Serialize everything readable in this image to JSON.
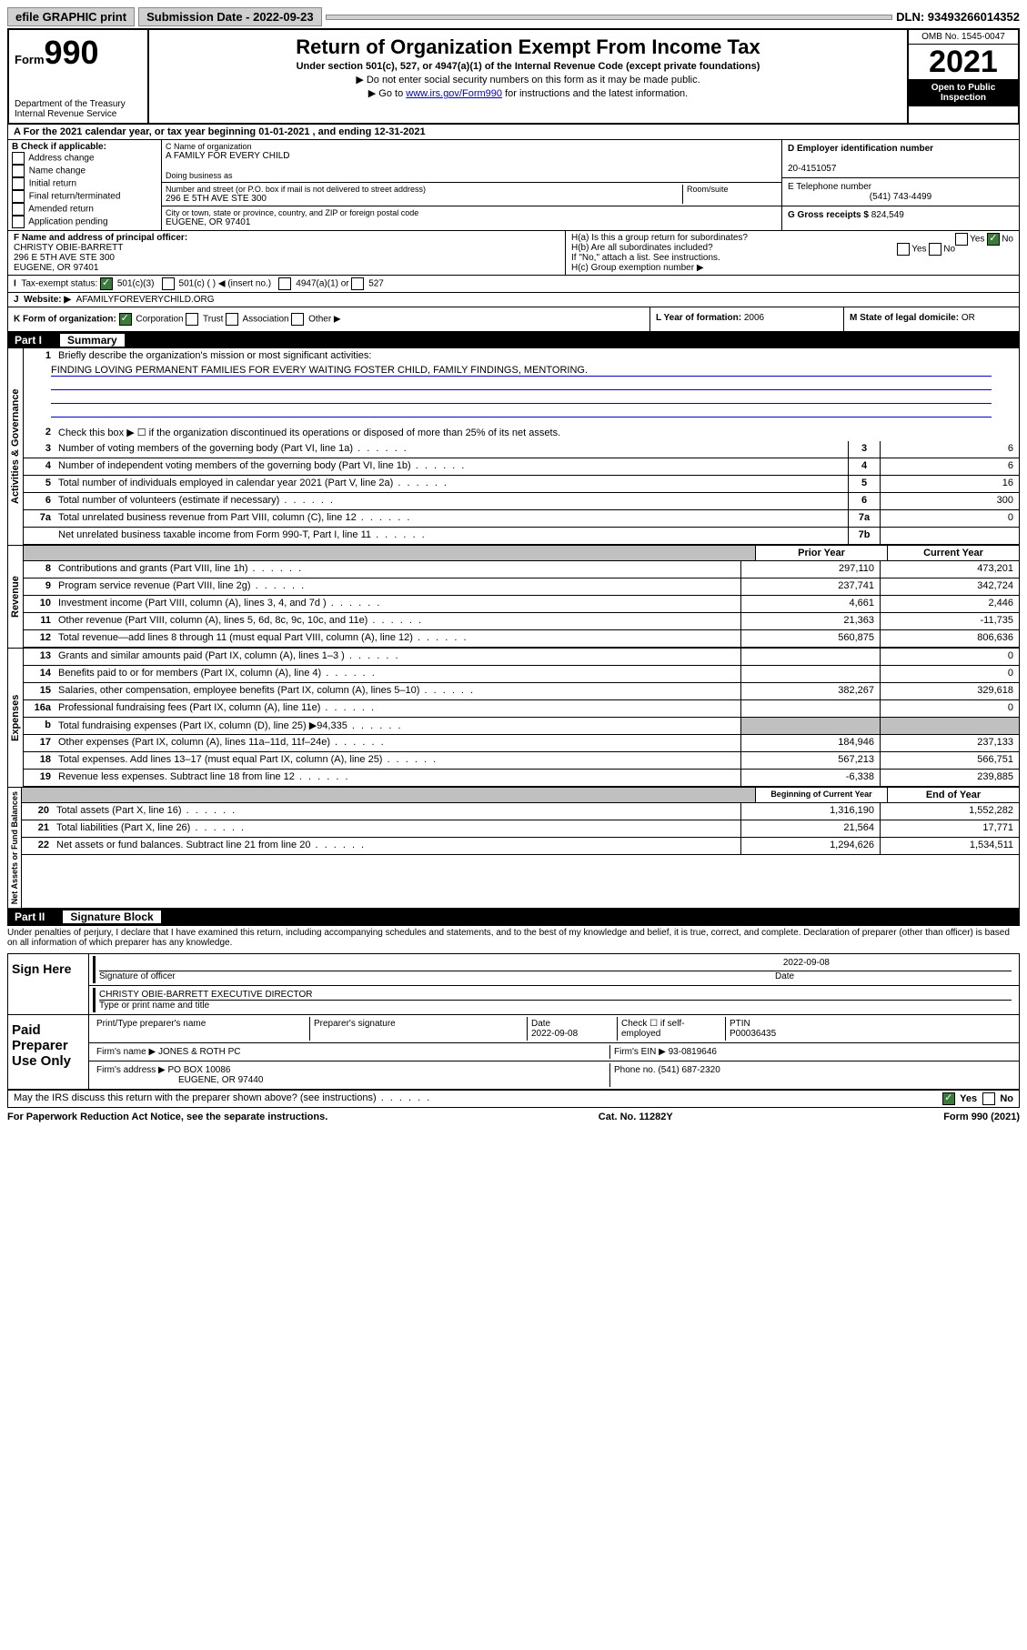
{
  "top": {
    "efile": "efile GRAPHIC print",
    "submission_label": "Submission Date - 2022-09-23",
    "dln": "DLN: 93493266014352"
  },
  "header": {
    "form_word": "Form",
    "form_number": "990",
    "dept": "Department of the Treasury",
    "irs": "Internal Revenue Service",
    "title": "Return of Organization Exempt From Income Tax",
    "sub": "Under section 501(c), 527, or 4947(a)(1) of the Internal Revenue Code (except private foundations)",
    "note1": "▶ Do not enter social security numbers on this form as it may be made public.",
    "note2_pre": "▶ Go to ",
    "note2_link": "www.irs.gov/Form990",
    "note2_post": " for instructions and the latest information.",
    "omb": "OMB No. 1545-0047",
    "year": "2021",
    "inspect": "Open to Public Inspection"
  },
  "a": {
    "tax_year": "For the 2021 calendar year, or tax year beginning 01-01-2021   , and ending 12-31-2021",
    "b_label": "B Check if applicable:",
    "b_opts": [
      "Address change",
      "Name change",
      "Initial return",
      "Final return/terminated",
      "Amended return",
      "Application pending"
    ],
    "c_label": "C Name of organization",
    "c_name": "A FAMILY FOR EVERY CHILD",
    "dba_label": "Doing business as",
    "addr_label": "Number and street (or P.O. box if mail is not delivered to street address)",
    "room_label": "Room/suite",
    "addr": "296 E 5TH AVE STE 300",
    "city_label": "City or town, state or province, country, and ZIP or foreign postal code",
    "city": "EUGENE, OR  97401",
    "d_label": "D Employer identification number",
    "d_val": "20-4151057",
    "e_label": "E Telephone number",
    "e_val": "(541) 743-4499",
    "g_label": "G Gross receipts $",
    "g_val": "824,549",
    "f_label": "F Name and address of principal officer:",
    "f_name": "CHRISTY OBIE-BARRETT",
    "f_addr1": "296 E 5TH AVE STE 300",
    "f_addr2": "EUGENE, OR  97401",
    "ha_label": "H(a)  Is this a group return for subordinates?",
    "hb_label": "H(b)  Are all subordinates included?",
    "hb_note": "If \"No,\" attach a list. See instructions.",
    "hc_label": "H(c)  Group exemption number ▶",
    "yes": "Yes",
    "no": "No",
    "i_label": "Tax-exempt status:",
    "i_501c3": "501(c)(3)",
    "i_501c": "501(c) (   ) ◀ (insert no.)",
    "i_4947": "4947(a)(1) or",
    "i_527": "527",
    "j_label": "Website: ▶",
    "j_val": "AFAMILYFOREVERYCHILD.ORG",
    "k_label": "K Form of organization:",
    "k_corp": "Corporation",
    "k_trust": "Trust",
    "k_assoc": "Association",
    "k_other": "Other ▶",
    "l_label": "L Year of formation:",
    "l_val": "2006",
    "m_label": "M State of legal domicile:",
    "m_val": "OR"
  },
  "part1": {
    "label": "Part I",
    "title": "Summary",
    "q1": "Briefly describe the organization's mission or most significant activities:",
    "mission": "FINDING LOVING PERMANENT FAMILIES FOR EVERY WAITING FOSTER CHILD, FAMILY FINDINGS, MENTORING.",
    "q2": "Check this box ▶ ☐  if the organization discontinued its operations or disposed of more than 25% of its net assets.",
    "rows_gov": [
      {
        "n": "3",
        "d": "Number of voting members of the governing body (Part VI, line 1a)",
        "box": "3",
        "v": "6"
      },
      {
        "n": "4",
        "d": "Number of independent voting members of the governing body (Part VI, line 1b)",
        "box": "4",
        "v": "6"
      },
      {
        "n": "5",
        "d": "Total number of individuals employed in calendar year 2021 (Part V, line 2a)",
        "box": "5",
        "v": "16"
      },
      {
        "n": "6",
        "d": "Total number of volunteers (estimate if necessary)",
        "box": "6",
        "v": "300"
      },
      {
        "n": "7a",
        "d": "Total unrelated business revenue from Part VIII, column (C), line 12",
        "box": "7a",
        "v": "0"
      },
      {
        "n": "",
        "d": "Net unrelated business taxable income from Form 990-T, Part I, line 11",
        "box": "7b",
        "v": ""
      }
    ],
    "head_prior": "Prior Year",
    "head_current": "Current Year",
    "rows_rev": [
      {
        "n": "8",
        "d": "Contributions and grants (Part VIII, line 1h)",
        "p": "297,110",
        "c": "473,201"
      },
      {
        "n": "9",
        "d": "Program service revenue (Part VIII, line 2g)",
        "p": "237,741",
        "c": "342,724"
      },
      {
        "n": "10",
        "d": "Investment income (Part VIII, column (A), lines 3, 4, and 7d )",
        "p": "4,661",
        "c": "2,446"
      },
      {
        "n": "11",
        "d": "Other revenue (Part VIII, column (A), lines 5, 6d, 8c, 9c, 10c, and 11e)",
        "p": "21,363",
        "c": "-11,735"
      },
      {
        "n": "12",
        "d": "Total revenue—add lines 8 through 11 (must equal Part VIII, column (A), line 12)",
        "p": "560,875",
        "c": "806,636"
      }
    ],
    "rows_exp": [
      {
        "n": "13",
        "d": "Grants and similar amounts paid (Part IX, column (A), lines 1–3 )",
        "p": "",
        "c": "0"
      },
      {
        "n": "14",
        "d": "Benefits paid to or for members (Part IX, column (A), line 4)",
        "p": "",
        "c": "0"
      },
      {
        "n": "15",
        "d": "Salaries, other compensation, employee benefits (Part IX, column (A), lines 5–10)",
        "p": "382,267",
        "c": "329,618"
      },
      {
        "n": "16a",
        "d": "Professional fundraising fees (Part IX, column (A), line 11e)",
        "p": "",
        "c": "0"
      },
      {
        "n": "b",
        "d": "Total fundraising expenses (Part IX, column (D), line 25) ▶94,335",
        "p": "shade",
        "c": "shade"
      },
      {
        "n": "17",
        "d": "Other expenses (Part IX, column (A), lines 11a–11d, 11f–24e)",
        "p": "184,946",
        "c": "237,133"
      },
      {
        "n": "18",
        "d": "Total expenses. Add lines 13–17 (must equal Part IX, column (A), line 25)",
        "p": "567,213",
        "c": "566,751"
      },
      {
        "n": "19",
        "d": "Revenue less expenses. Subtract line 18 from line 12",
        "p": "-6,338",
        "c": "239,885"
      }
    ],
    "head_begin": "Beginning of Current Year",
    "head_end": "End of Year",
    "rows_net": [
      {
        "n": "20",
        "d": "Total assets (Part X, line 16)",
        "p": "1,316,190",
        "c": "1,552,282"
      },
      {
        "n": "21",
        "d": "Total liabilities (Part X, line 26)",
        "p": "21,564",
        "c": "17,771"
      },
      {
        "n": "22",
        "d": "Net assets or fund balances. Subtract line 21 from line 20",
        "p": "1,294,626",
        "c": "1,534,511"
      }
    ],
    "vtab_gov": "Activities & Governance",
    "vtab_rev": "Revenue",
    "vtab_exp": "Expenses",
    "vtab_net": "Net Assets or Fund Balances"
  },
  "part2": {
    "label": "Part II",
    "title": "Signature Block",
    "declare": "Under penalties of perjury, I declare that I have examined this return, including accompanying schedules and statements, and to the best of my knowledge and belief, it is true, correct, and complete. Declaration of preparer (other than officer) is based on all information of which preparer has any knowledge.",
    "sign_here": "Sign Here",
    "sig_officer": "Signature of officer",
    "sig_date_label": "Date",
    "sig_date": "2022-09-08",
    "sig_name": "CHRISTY OBIE-BARRETT  EXECUTIVE DIRECTOR",
    "sig_name_label": "Type or print name and title",
    "paid": "Paid Preparer Use Only",
    "prep_name_label": "Print/Type preparer's name",
    "prep_sig_label": "Preparer's signature",
    "prep_date_label": "Date",
    "prep_date": "2022-09-08",
    "prep_check": "Check ☐ if self-employed",
    "ptin_label": "PTIN",
    "ptin": "P00036435",
    "firm_name_label": "Firm's name    ▶",
    "firm_name": "JONES & ROTH PC",
    "firm_ein_label": "Firm's EIN ▶",
    "firm_ein": "93-0819646",
    "firm_addr_label": "Firm's address ▶",
    "firm_addr1": "PO BOX 10086",
    "firm_addr2": "EUGENE, OR  97440",
    "phone_label": "Phone no.",
    "phone": "(541) 687-2320",
    "may_irs": "May the IRS discuss this return with the preparer shown above? (see instructions)",
    "paperwork": "For Paperwork Reduction Act Notice, see the separate instructions.",
    "cat": "Cat. No. 11282Y",
    "form_foot": "Form 990 (2021)"
  }
}
